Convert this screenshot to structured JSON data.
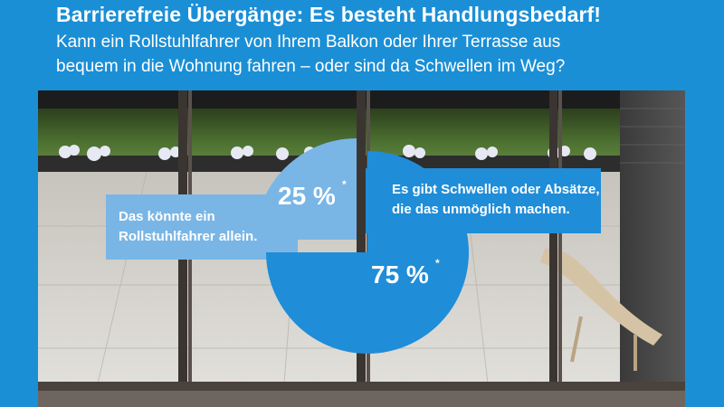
{
  "header": {
    "title": "Barrierefreie Übergänge: Es besteht Handlungsbedarf!",
    "subtitle_line1": "Kann ein Rollstuhlfahrer von Ihrem Balkon oder Ihrer Terrasse aus",
    "subtitle_line2": "bequem in die Wohnung fahren – oder sind da Schwellen im Weg?"
  },
  "colors": {
    "brand_blue": "#1a8fd6",
    "slice_light": "#79b6e6",
    "slice_dark": "#1f8dd8",
    "text_white": "#ffffff"
  },
  "chart_data": {
    "type": "pie",
    "title": "Barrierefreie Übergänge: Es besteht Handlungsbedarf!",
    "slices": [
      {
        "label_line1": "Das könnte ein",
        "label_line2": "Rollstuhlfahrer allein.",
        "value": 25,
        "value_label": "25 %",
        "footnote_mark": "*",
        "color": "#79b6e6"
      },
      {
        "label_line1": "Es gibt Schwellen oder Absätze,",
        "label_line2": "die das unmöglich machen.",
        "value": 75,
        "value_label": "75 %",
        "footnote_mark": "*",
        "color": "#1f8dd8"
      }
    ]
  }
}
